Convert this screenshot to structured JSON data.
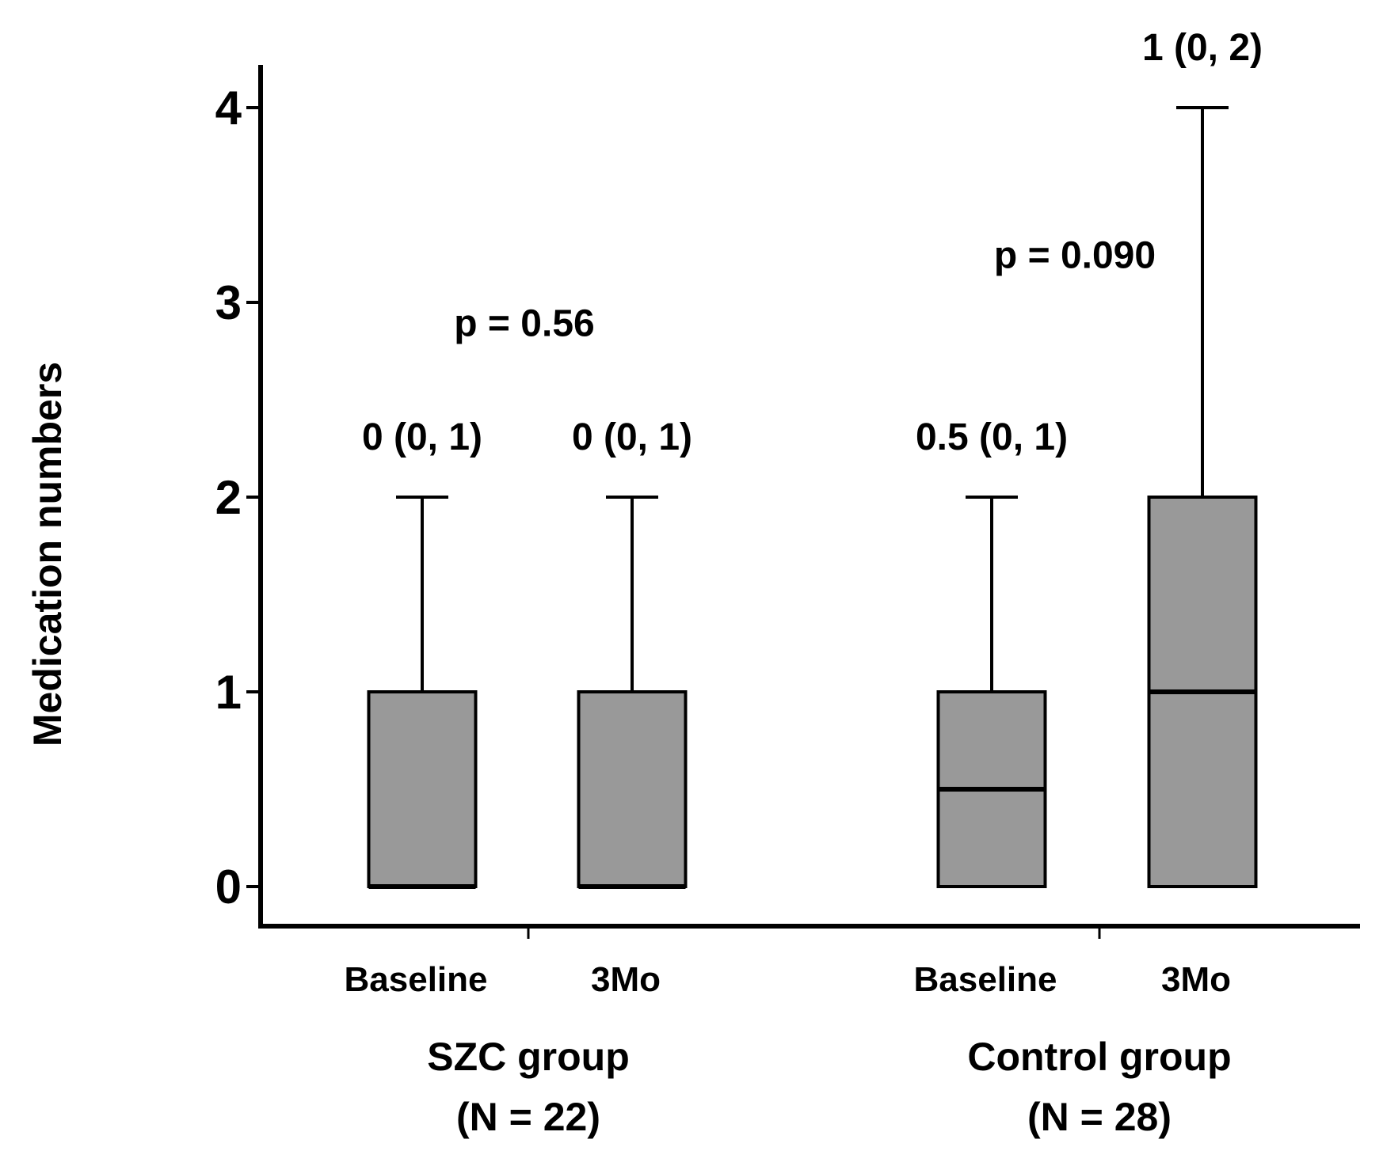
{
  "chart_data": {
    "type": "box",
    "ylabel": "Medication numbers",
    "ylim": [
      -0.22,
      4.22
    ],
    "yticks": [
      0,
      1,
      2,
      3,
      4
    ],
    "colors": {
      "box_fill": "#999999",
      "stroke": "#000000"
    },
    "groups": [
      {
        "name": "SZC group",
        "n_label": "(N = 22)",
        "p_label": "p = 0.56",
        "p_value_y": 2.9,
        "boxes": [
          {
            "label": "Baseline",
            "min": 0,
            "q1": 0,
            "median": 0,
            "q3": 1,
            "max": 2,
            "annotation": "0 (0, 1)"
          },
          {
            "label": "3Mo",
            "min": 0,
            "q1": 0,
            "median": 0,
            "q3": 1,
            "max": 2,
            "annotation": "0 (0, 1)"
          }
        ]
      },
      {
        "name": "Control group",
        "n_label": "(N = 28)",
        "p_label": "p = 0.090",
        "p_value_y": 3.25,
        "boxes": [
          {
            "label": "Baseline",
            "min": 0,
            "q1": 0,
            "median": 0.5,
            "q3": 1,
            "max": 2,
            "annotation": "0.5 (0, 1)"
          },
          {
            "label": "3Mo",
            "min": 0,
            "q1": 0,
            "median": 1,
            "q3": 2,
            "max": 4,
            "annotation": "1 (0, 2)"
          }
        ]
      }
    ]
  }
}
